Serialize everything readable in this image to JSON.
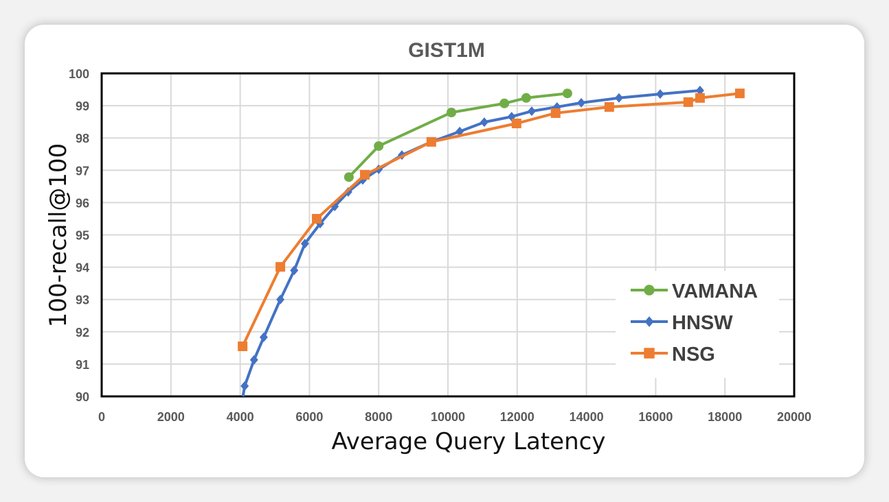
{
  "chart_data": {
    "type": "line",
    "title": "GIST1M",
    "xlabel": "Average Query Latency",
    "ylabel": "100-recall@100",
    "xlim": [
      0,
      20000
    ],
    "ylim": [
      90,
      100
    ],
    "xticks": [
      0,
      2000,
      4000,
      6000,
      8000,
      10000,
      12000,
      14000,
      16000,
      18000,
      20000
    ],
    "yticks": [
      90,
      91,
      92,
      93,
      94,
      95,
      96,
      97,
      98,
      99,
      100
    ],
    "grid": true,
    "legend_position": "bottom-right",
    "series": [
      {
        "name": "VAMANA",
        "color": "#70ad47",
        "marker": "circle",
        "x": [
          7140,
          8000,
          10100,
          11630,
          12260,
          13450
        ],
        "y": [
          96.79,
          97.75,
          98.79,
          99.07,
          99.24,
          99.38
        ]
      },
      {
        "name": "HNSW",
        "color": "#4472c4",
        "marker": "diamond",
        "x": [
          4130,
          4400,
          4680,
          5160,
          5560,
          5870,
          6310,
          6730,
          7120,
          7540,
          8000,
          8670,
          9520,
          10340,
          11050,
          11840,
          12420,
          13150,
          13850,
          14940,
          16130,
          17280
        ],
        "y": [
          90.32,
          91.13,
          91.83,
          93.0,
          93.9,
          94.73,
          95.35,
          95.88,
          96.33,
          96.7,
          97.03,
          97.47,
          97.88,
          98.2,
          98.49,
          98.66,
          98.83,
          98.96,
          99.09,
          99.24,
          99.36,
          99.47
        ]
      },
      {
        "name": "NSG",
        "color": "#ed7d31",
        "marker": "square",
        "x": [
          4070,
          5160,
          6210,
          7600,
          9520,
          11980,
          13110,
          14660,
          16940,
          17280,
          18430
        ],
        "y": [
          91.55,
          94.01,
          95.5,
          96.86,
          97.88,
          98.45,
          98.77,
          98.96,
          99.11,
          99.24,
          99.38
        ]
      }
    ]
  }
}
